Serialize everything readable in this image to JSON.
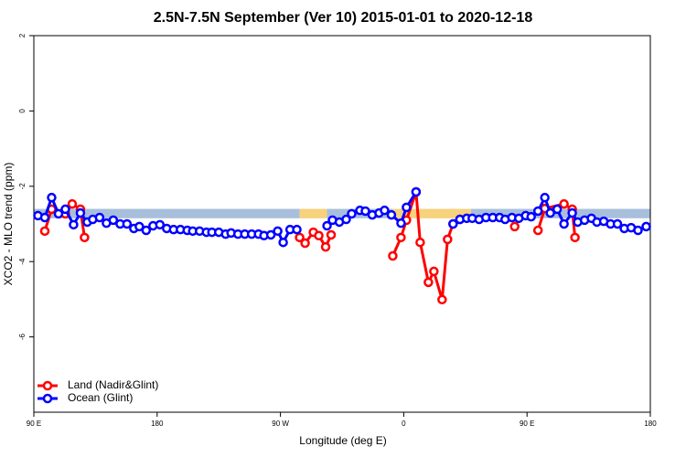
{
  "chart_data": {
    "type": "line",
    "title": "2.5N-7.5N September (Ver 10)   2015-01-01 to 2020-12-18",
    "x_label": "Longitude (deg E)",
    "y_label": "XCO2 - MLO trend (ppm)",
    "xlim": [
      90,
      540
    ],
    "xticks": [
      {
        "value": 90,
        "label": "90 E"
      },
      180,
      {
        "value": 270,
        "label": "90 W"
      },
      {
        "value": 360,
        "label": "0"
      },
      {
        "value": 450,
        "label": "90 E"
      },
      {
        "value": 540,
        "label": "180"
      }
    ],
    "ylim": [
      -8,
      2
    ],
    "yticks": [
      2,
      0,
      -2,
      -4,
      -6
    ],
    "legend": "bottomleft",
    "bands": [
      {
        "x": [
          90,
          284
        ],
        "y": [
          -2.6,
          -2.85
        ],
        "color": "#a8bfdc"
      },
      {
        "x": [
          284,
          304
        ],
        "y": [
          -2.6,
          -2.85
        ],
        "color": "#f7d27c"
      },
      {
        "x": [
          304,
          352
        ],
        "y": [
          -2.6,
          -2.85
        ],
        "color": "#a8bfdc"
      },
      {
        "x": [
          352,
          409
        ],
        "y": [
          -2.6,
          -2.85
        ],
        "color": "#f7d27c"
      },
      {
        "x": [
          409,
          540
        ],
        "y": [
          -2.6,
          -2.85
        ],
        "color": "#a8bfdc"
      }
    ],
    "series": [
      {
        "name": "Land (Nadir&Glint)",
        "color": "#ff0000",
        "x": [
          98,
          103,
          113,
          118,
          124,
          127,
          null,
          284,
          288,
          294,
          298,
          303,
          307,
          null,
          352,
          358,
          362,
          369,
          372,
          378,
          382,
          388,
          392,
          396,
          401,
          null,
          441,
          null,
          458,
          463,
          477,
          483,
          485
        ],
        "values": [
          -3.19,
          -2.61,
          -2.73,
          -2.47,
          -2.61,
          -3.36,
          null,
          -3.36,
          -3.51,
          -3.22,
          -3.31,
          -3.61,
          -3.29,
          null,
          -3.85,
          -3.36,
          -2.9,
          -2.15,
          -3.49,
          -4.55,
          -4.26,
          -5.01,
          -3.41,
          -3.0,
          -2.88,
          null,
          -3.07,
          null,
          -3.17,
          -2.59,
          -2.47,
          -2.61,
          -3.36
        ]
      },
      {
        "name": "Ocean (Glint)",
        "color": "#0000ff",
        "x": [
          93,
          98,
          103,
          108,
          113,
          119,
          124,
          129,
          133,
          138,
          143,
          148,
          153,
          158,
          163,
          167,
          172,
          177,
          182,
          187,
          192,
          197,
          202,
          206,
          211,
          216,
          220,
          225,
          230,
          234,
          239,
          244,
          249,
          254,
          258,
          263,
          268,
          272,
          277,
          282,
          null,
          304,
          308,
          313,
          318,
          322,
          328,
          332,
          337,
          342,
          346,
          351,
          358,
          362,
          369,
          null,
          396,
          401,
          406,
          410,
          415,
          420,
          425,
          430,
          434,
          439,
          444,
          449,
          453,
          458,
          463,
          467,
          472,
          477,
          483,
          487,
          492,
          497,
          501,
          506,
          511,
          516,
          521,
          526,
          531,
          537
        ],
        "values": [
          -2.78,
          -2.83,
          -2.3,
          -2.73,
          -2.61,
          -3.02,
          -2.71,
          -2.95,
          -2.88,
          -2.83,
          -2.98,
          -2.9,
          -3.0,
          -3.0,
          -3.12,
          -3.07,
          -3.17,
          -3.05,
          -3.02,
          -3.12,
          -3.15,
          -3.15,
          -3.17,
          -3.19,
          -3.19,
          -3.22,
          -3.22,
          -3.22,
          -3.27,
          -3.24,
          -3.27,
          -3.27,
          -3.27,
          -3.27,
          -3.31,
          -3.29,
          -3.19,
          -3.49,
          -3.15,
          -3.15,
          null,
          -3.05,
          -2.9,
          -2.95,
          -2.88,
          -2.73,
          -2.64,
          -2.66,
          -2.76,
          -2.71,
          -2.64,
          -2.76,
          -2.98,
          -2.56,
          -2.15,
          null,
          -3.0,
          -2.88,
          -2.85,
          -2.85,
          -2.88,
          -2.83,
          -2.83,
          -2.83,
          -2.88,
          -2.83,
          -2.85,
          -2.78,
          -2.81,
          -2.66,
          -2.3,
          -2.71,
          -2.61,
          -3.0,
          -2.71,
          -2.95,
          -2.9,
          -2.85,
          -2.95,
          -2.93,
          -3.0,
          -3.0,
          -3.12,
          -3.1,
          -3.17,
          -3.07
        ]
      }
    ]
  }
}
